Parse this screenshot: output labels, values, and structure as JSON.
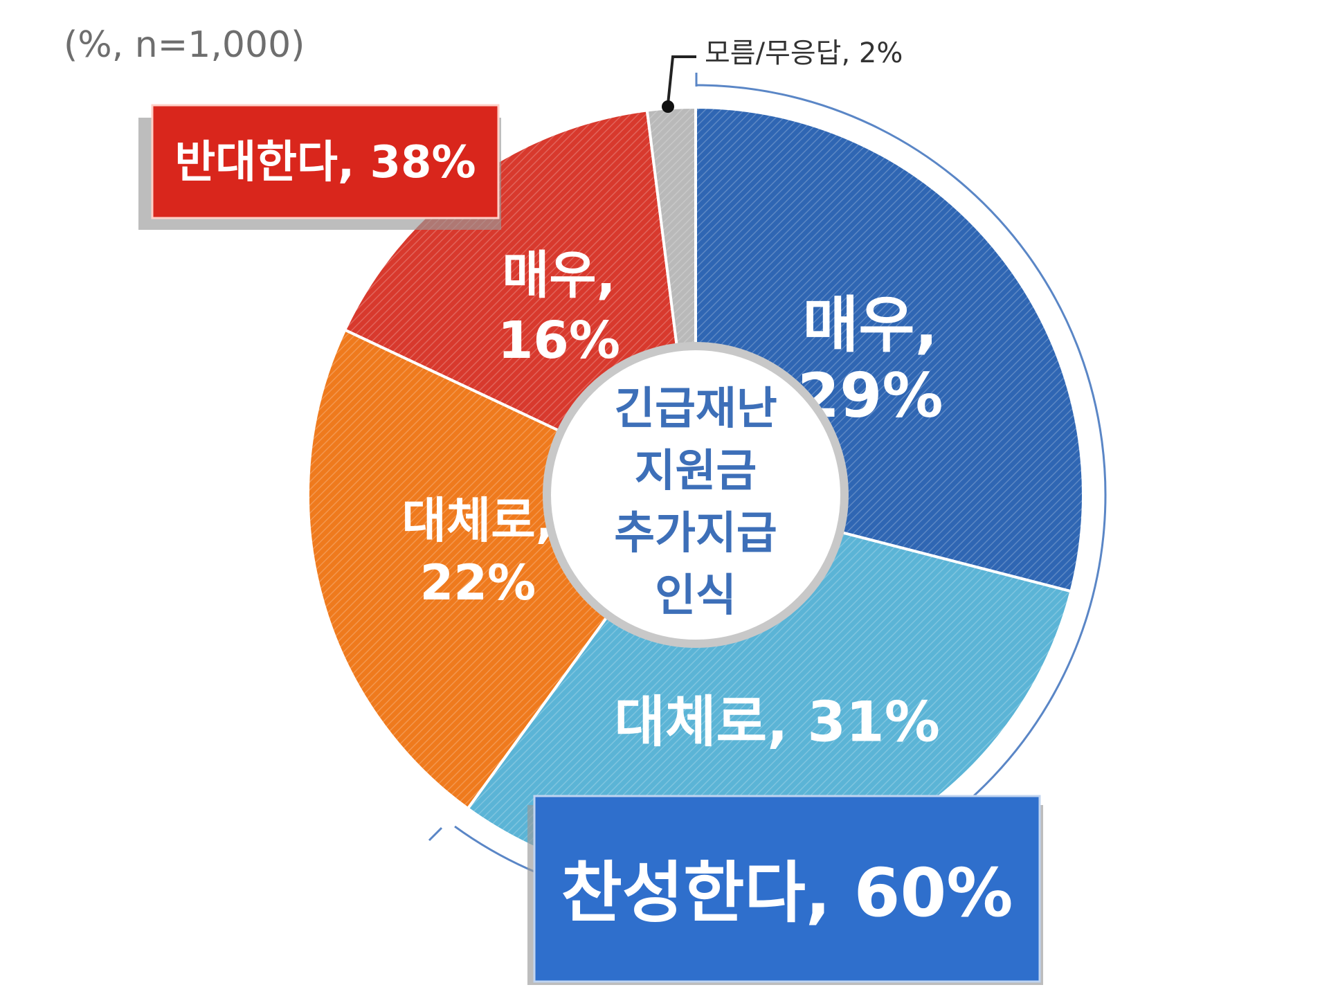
{
  "chart_data": {
    "type": "pie",
    "note": "(%, n=1,000)",
    "center_label": [
      "긴급재난",
      "지원금",
      "추가지급",
      "인식"
    ],
    "slices": [
      {
        "label_lines": [
          "매우,",
          "29%"
        ],
        "value": 29,
        "color": "#2f66b3"
      },
      {
        "label_lines": [
          "대체로, 31%"
        ],
        "value": 31,
        "color": "#5bb4d6"
      },
      {
        "label_lines": [
          "대체로,",
          "22%"
        ],
        "value": 22,
        "color": "#ef7a1d"
      },
      {
        "label_lines": [
          "매우,",
          "16%"
        ],
        "value": 16,
        "color": "#d8392d"
      },
      {
        "label": "모름/무응답, 2%",
        "value": 2,
        "color": "#b9b9b9"
      }
    ],
    "groups": [
      {
        "label": "찬성한다, 60%",
        "color": "#2f6fcc"
      },
      {
        "label": "반대한다, 38%",
        "color": "#d9261c"
      }
    ]
  }
}
